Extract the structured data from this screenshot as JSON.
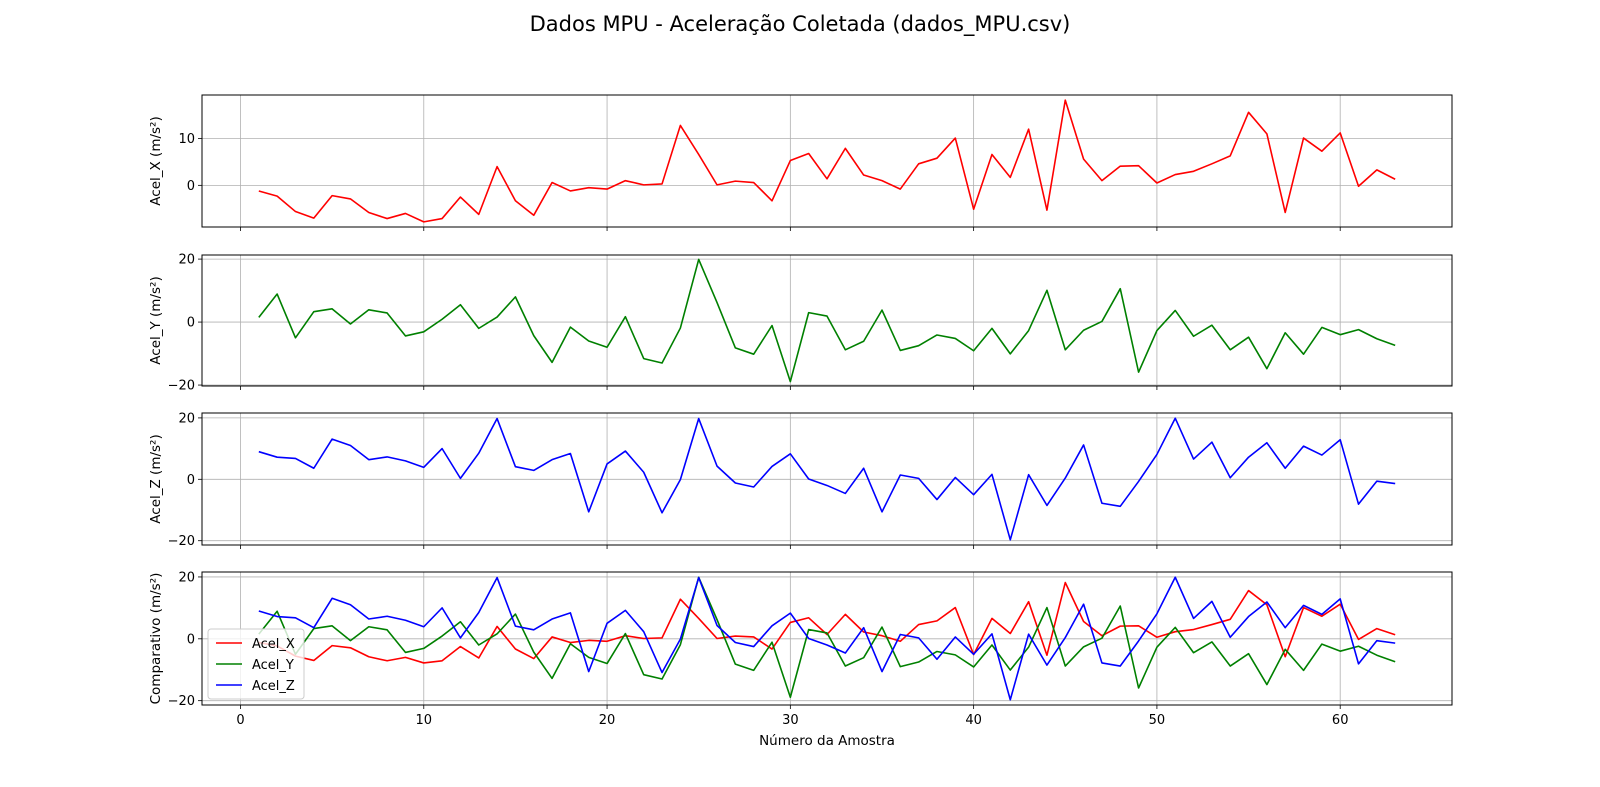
{
  "chart_data": {
    "type": "line",
    "title": "Dados MPU - Aceleração Coletada (dados_MPU.csv)",
    "xlabel": "Número da Amostra",
    "grid": true,
    "x": [
      1,
      2,
      3,
      4,
      5,
      6,
      7,
      8,
      9,
      10,
      11,
      12,
      13,
      14,
      15,
      16,
      17,
      18,
      19,
      20,
      21,
      22,
      23,
      24,
      25,
      26,
      27,
      28,
      29,
      30,
      31,
      32,
      33,
      34,
      35,
      36,
      37,
      38,
      39,
      40,
      41,
      42,
      43,
      44,
      45,
      46,
      47,
      48,
      49,
      50,
      51,
      52,
      53,
      54,
      55,
      56,
      57,
      58,
      59,
      60,
      61,
      62,
      63
    ],
    "xlim": [
      -2.1,
      66.1
    ],
    "xticks": [
      0,
      10,
      20,
      30,
      40,
      50,
      60
    ],
    "series": [
      {
        "name": "Acel_X",
        "color": "#ff0000",
        "values": [
          -1.2,
          -2.3,
          -5.6,
          -7.0,
          -2.2,
          -2.9,
          -5.8,
          -7.1,
          -6.0,
          -7.8,
          -7.1,
          -2.5,
          -6.2,
          4.0,
          -3.3,
          -6.4,
          0.6,
          -1.2,
          -0.5,
          -0.8,
          1.0,
          0.1,
          0.3,
          12.8,
          6.6,
          0.1,
          0.9,
          0.6,
          -3.3,
          5.3,
          6.8,
          1.4,
          7.9,
          2.2,
          1.0,
          -0.8,
          4.6,
          5.8,
          10.1,
          -5.1,
          6.6,
          1.7,
          12.0,
          -5.3,
          18.2,
          5.6,
          1.0,
          4.1,
          4.2,
          0.5,
          2.3,
          3.0,
          4.6,
          6.3,
          15.6,
          11.0,
          -5.8,
          10.1,
          7.3,
          11.2,
          -0.2,
          3.3,
          1.3
        ]
      },
      {
        "name": "Acel_Y",
        "color": "#008000",
        "values": [
          1.5,
          8.9,
          -5.0,
          3.3,
          4.2,
          -0.6,
          3.9,
          2.9,
          -4.4,
          -3.1,
          0.9,
          5.5,
          -2.0,
          1.6,
          8.0,
          -4.3,
          -12.8,
          -1.6,
          -6.0,
          -8.0,
          1.7,
          -11.6,
          -13.0,
          -1.9,
          19.9,
          6.2,
          -8.2,
          -10.2,
          -1.1,
          -18.9,
          3.0,
          1.9,
          -8.8,
          -6.1,
          3.8,
          -9.0,
          -7.5,
          -4.1,
          -5.2,
          -9.1,
          -2.0,
          -10.1,
          -2.7,
          10.1,
          -8.8,
          -2.6,
          0.2,
          10.6,
          -15.9,
          -2.7,
          3.7,
          -4.5,
          -1.0,
          -8.8,
          -4.8,
          -14.8,
          -3.4,
          -10.2,
          -1.7,
          -4.0,
          -2.4,
          -5.3,
          -7.4
        ]
      },
      {
        "name": "Acel_Z",
        "color": "#0000ff",
        "values": [
          9.0,
          7.2,
          6.8,
          3.6,
          13.1,
          11.0,
          6.4,
          7.3,
          6.0,
          3.9,
          10.0,
          0.3,
          8.5,
          19.8,
          4.1,
          2.9,
          6.4,
          8.4,
          -10.6,
          5.0,
          9.2,
          2.3,
          -10.9,
          -0.1,
          19.8,
          4.3,
          -1.2,
          -2.5,
          4.2,
          8.3,
          0.1,
          -2.0,
          -4.6,
          3.6,
          -10.6,
          1.4,
          0.3,
          -6.6,
          0.6,
          -5.0,
          1.6,
          -19.7,
          1.5,
          -8.5,
          0.4,
          11.2,
          -7.8,
          -8.8,
          -0.7,
          8.1,
          19.9,
          6.6,
          12.1,
          0.5,
          7.2,
          11.9,
          3.6,
          10.8,
          7.9,
          12.9,
          -8.1,
          -0.6,
          -1.4
        ]
      }
    ],
    "panels": [
      {
        "ylabel": "Acel_X",
        "ylabel_unit": "(m/s²)",
        "series": [
          "Acel_X"
        ],
        "ylim": [
          -8.9,
          19.3
        ],
        "yticks": [
          0,
          10
        ]
      },
      {
        "ylabel": "Acel_Y",
        "ylabel_unit": "(m/s²)",
        "series": [
          "Acel_Y"
        ],
        "ylim": [
          -20.3,
          21.3
        ],
        "yticks": [
          -20,
          0,
          20
        ]
      },
      {
        "ylabel": "Acel_Z",
        "ylabel_unit": "(m/s²)",
        "series": [
          "Acel_Z"
        ],
        "ylim": [
          -21.4,
          21.6
        ],
        "yticks": [
          -20,
          0,
          20
        ]
      },
      {
        "ylabel": "Comparativo",
        "ylabel_unit": "(m/s²)",
        "series": [
          "Acel_X",
          "Acel_Y",
          "Acel_Z"
        ],
        "ylim": [
          -21.4,
          21.6
        ],
        "yticks": [
          -20,
          0,
          20
        ],
        "legend": "lower-left"
      }
    ]
  }
}
